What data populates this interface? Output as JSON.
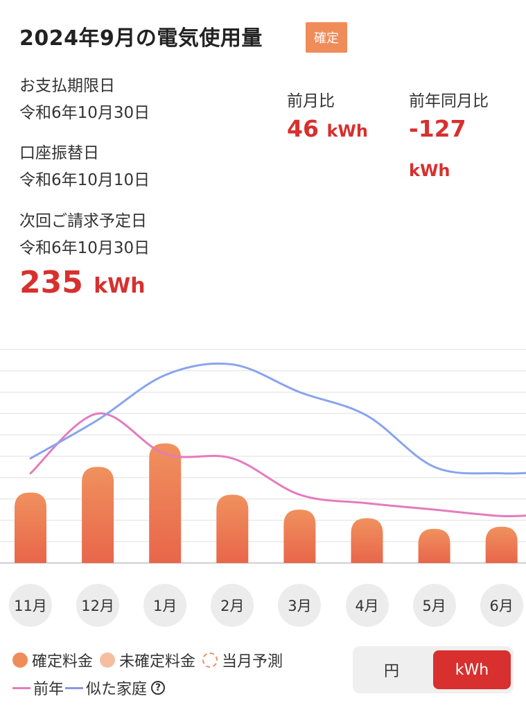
{
  "header": {
    "title": "2024年9月の電気使用量",
    "badge": "確定"
  },
  "summary": {
    "payment_due_label": "お支払期限日",
    "payment_due_date": "令和6年10月30日",
    "transfer_label": "口座振替日",
    "transfer_date": "令和6年10月10日",
    "next_bill_label": "次回ご請求予定日",
    "next_bill_date": "令和6年10月30日",
    "usage_value": "235",
    "usage_unit": "kWh"
  },
  "comparison": {
    "prev_month_label": "前月比",
    "prev_month_value": "46",
    "prev_month_unit": "kWh",
    "prev_year_label": "前年同月比",
    "prev_year_value": "-127",
    "prev_year_unit": "kWh"
  },
  "chart_data": {
    "type": "bar",
    "categories": [
      "11月",
      "12月",
      "1月",
      "2月",
      "3月",
      "4月",
      "5月",
      "6月"
    ],
    "ylim": [
      0,
      10
    ],
    "grid": true,
    "series": [
      {
        "name": "確定料金",
        "kind": "bar",
        "color": "#ec7448",
        "values": [
          3.3,
          4.5,
          5.6,
          3.2,
          2.5,
          2.1,
          1.6,
          1.7
        ]
      },
      {
        "name": "前年",
        "kind": "line",
        "color": "#e57bbd",
        "values": [
          4.2,
          7.0,
          5.1,
          4.9,
          3.2,
          2.8,
          2.5,
          2.2
        ]
      },
      {
        "name": "似た家庭",
        "kind": "line",
        "color": "#87a4ef",
        "values": [
          4.9,
          6.7,
          8.8,
          9.3,
          8.0,
          6.9,
          4.5,
          4.2
        ]
      }
    ]
  },
  "legend": {
    "confirmed": "確定料金",
    "unconfirmed": "未確定料金",
    "forecast": "当月予測",
    "prev_year": "前年",
    "similar": "似た家庭",
    "help_icon": "?",
    "colors": {
      "confirmed": "#ef8c5a",
      "unconfirmed": "#f6bea0",
      "prev_year": "#e57bbd",
      "similar": "#8a96e8"
    }
  },
  "toggle": {
    "yen": "円",
    "kwh": "kWh",
    "active": "kWh"
  }
}
